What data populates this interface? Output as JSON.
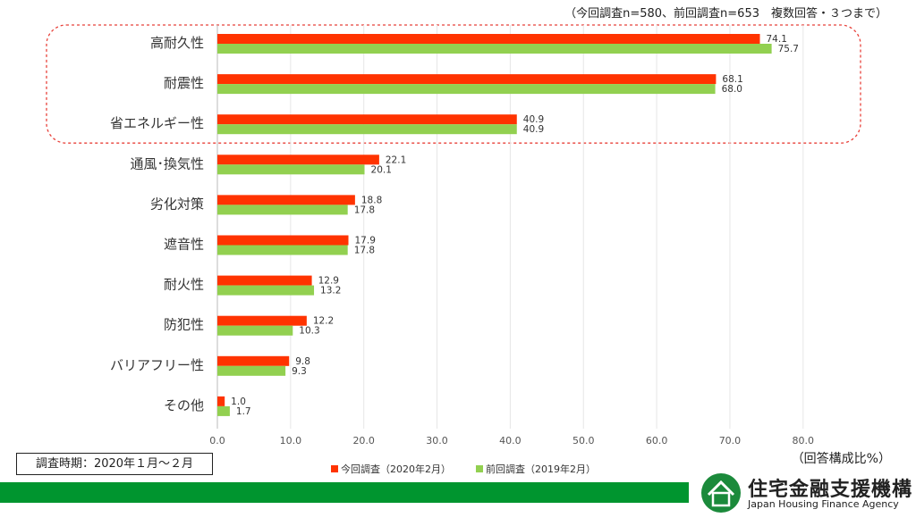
{
  "header": {
    "note": "（今回調査n=580、前回調査n=653　複数回答・３つまで）"
  },
  "chart_data": {
    "type": "bar",
    "orientation": "horizontal",
    "categories": [
      "高耐久性",
      "耐震性",
      "省エネルギー性",
      "通風･換気性",
      "劣化対策",
      "遮音性",
      "耐火性",
      "防犯性",
      "バリアフリー性",
      "その他"
    ],
    "series": [
      {
        "name": "今回調査（2020年2月）",
        "color": "#ff3300",
        "values": [
          74.1,
          68.1,
          40.9,
          22.1,
          18.8,
          17.9,
          12.9,
          12.2,
          9.8,
          1.0
        ]
      },
      {
        "name": "前回調査（2019年2月）",
        "color": "#92d050",
        "values": [
          75.7,
          68.0,
          40.9,
          20.1,
          17.8,
          17.8,
          13.2,
          10.3,
          9.3,
          1.7
        ]
      }
    ],
    "xlim": [
      0,
      80
    ],
    "xticks": [
      "0.0",
      "10.0",
      "20.0",
      "30.0",
      "40.0",
      "50.0",
      "60.0",
      "70.0",
      "80.0"
    ],
    "highlight_categories": [
      "高耐久性",
      "耐震性",
      "省エネルギー性"
    ],
    "grid": true,
    "legend_position": "bottom"
  },
  "footer": {
    "survey_period": "調査時期：2020年１月～２月",
    "unit": "（回答構成比%）",
    "logo_text": "住宅金融支援機構",
    "logo_en": "Japan Housing Finance Agency"
  }
}
